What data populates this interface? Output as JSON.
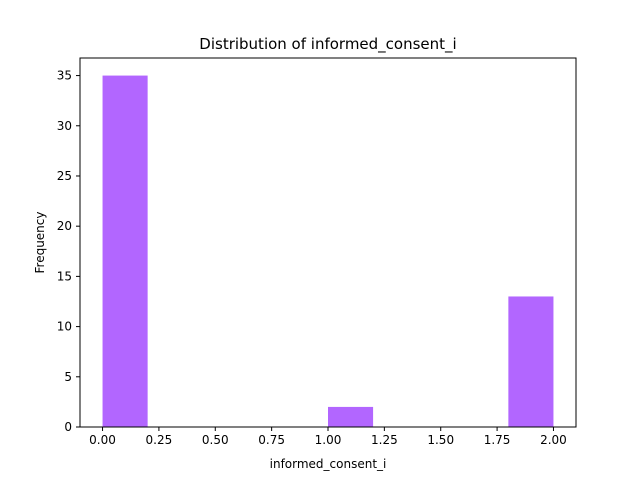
{
  "chart_data": {
    "type": "bar",
    "title": "Distribution of  informed_consent_i",
    "xlabel": "informed_consent_i",
    "ylabel": "Frequency",
    "xlim": [
      -0.1,
      2.1
    ],
    "ylim": [
      0,
      36.75
    ],
    "grid": false,
    "bar_color": "#b266ff",
    "bins": [
      {
        "x0": 0.0,
        "x1": 0.2,
        "value": 35
      },
      {
        "x0": 0.2,
        "x1": 0.4,
        "value": 0
      },
      {
        "x0": 0.4,
        "x1": 0.6,
        "value": 0
      },
      {
        "x0": 0.6,
        "x1": 0.8,
        "value": 0
      },
      {
        "x0": 0.8,
        "x1": 1.0,
        "value": 0
      },
      {
        "x0": 1.0,
        "x1": 1.2,
        "value": 2
      },
      {
        "x0": 1.2,
        "x1": 1.4,
        "value": 0
      },
      {
        "x0": 1.4,
        "x1": 1.6,
        "value": 0
      },
      {
        "x0": 1.6,
        "x1": 1.8,
        "value": 0
      },
      {
        "x0": 1.8,
        "x1": 2.0,
        "value": 13
      }
    ],
    "xticks": [
      {
        "value": 0.0,
        "label": "0.00"
      },
      {
        "value": 0.25,
        "label": "0.25"
      },
      {
        "value": 0.5,
        "label": "0.50"
      },
      {
        "value": 0.75,
        "label": "0.75"
      },
      {
        "value": 1.0,
        "label": "1.00"
      },
      {
        "value": 1.25,
        "label": "1.25"
      },
      {
        "value": 1.5,
        "label": "1.50"
      },
      {
        "value": 1.75,
        "label": "1.75"
      },
      {
        "value": 2.0,
        "label": "2.00"
      }
    ],
    "yticks": [
      {
        "value": 0,
        "label": "0"
      },
      {
        "value": 5,
        "label": "5"
      },
      {
        "value": 10,
        "label": "10"
      },
      {
        "value": 15,
        "label": "15"
      },
      {
        "value": 20,
        "label": "20"
      },
      {
        "value": 25,
        "label": "25"
      },
      {
        "value": 30,
        "label": "30"
      },
      {
        "value": 35,
        "label": "35"
      }
    ]
  }
}
